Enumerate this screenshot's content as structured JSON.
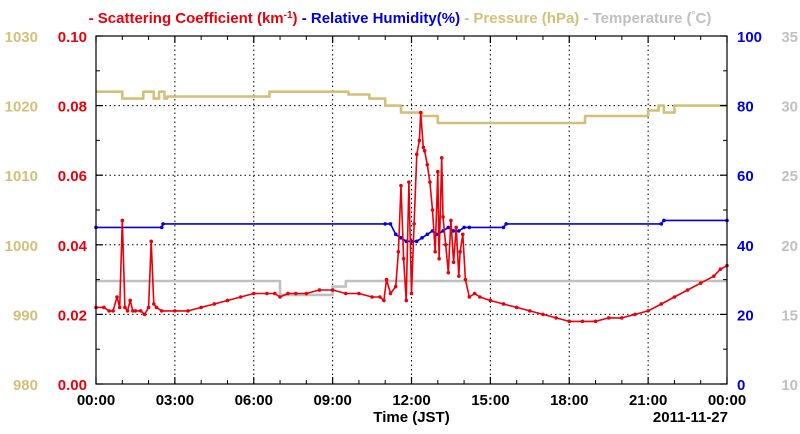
{
  "chart_data": {
    "type": "line",
    "xlabel": "Time (JST)",
    "date_label": "2011-11-27",
    "x_ticks": [
      "00:00",
      "03:00",
      "06:00",
      "09:00",
      "12:00",
      "15:00",
      "18:00",
      "21:00",
      "00:00"
    ],
    "xlim_hours": [
      0,
      24
    ],
    "grid": true,
    "legend": {
      "placement": "top",
      "entries": [
        {
          "marker": "-",
          "name": "Scattering Coefficient (km",
          "sup": "-1",
          "suffix": ")",
          "color": "#e8000b"
        },
        {
          "marker": "-",
          "name": "Relative Humidity(%)",
          "sup": "",
          "suffix": "",
          "color": "#0000e0"
        },
        {
          "marker": "-",
          "name": "Pressure (hPa)",
          "sup": "",
          "suffix": "",
          "color": "#d2c07a"
        },
        {
          "marker": "-",
          "name": "Temperature (",
          "sup": "°",
          "suffix": "C)",
          "color": "#c0c0c0"
        }
      ]
    },
    "axes": {
      "pressure": {
        "side": "left-outer",
        "ylim": [
          980,
          1030
        ],
        "ticks": [
          "980",
          "990",
          "1000",
          "1010",
          "1020",
          "1030"
        ],
        "color": "#d2c07a"
      },
      "scattering": {
        "side": "left-inner",
        "ylim": [
          0,
          0.1
        ],
        "ticks": [
          "0.00",
          "0.02",
          "0.04",
          "0.06",
          "0.08",
          "0.10"
        ],
        "color": "#e8000b"
      },
      "humidity": {
        "side": "right-inner",
        "ylim": [
          0,
          100
        ],
        "ticks": [
          "0",
          "20",
          "40",
          "60",
          "80",
          "100"
        ],
        "color": "#0000e0"
      },
      "temperature": {
        "side": "right-outer",
        "ylim": [
          10,
          35
        ],
        "ticks": [
          "10",
          "15",
          "20",
          "25",
          "30",
          "35"
        ],
        "color": "#c0c0c0"
      }
    },
    "series": [
      {
        "name": "Scattering Coefficient (km-1)",
        "axis": "scattering",
        "color": "#e8000b",
        "markers": true,
        "x": [
          0,
          0.3,
          0.5,
          0.65,
          0.8,
          0.9,
          1.0,
          1.1,
          1.2,
          1.3,
          1.4,
          1.5,
          1.7,
          1.85,
          2.0,
          2.1,
          2.2,
          2.3,
          2.5,
          3.0,
          3.5,
          4.0,
          4.5,
          5.0,
          5.5,
          6.0,
          6.5,
          6.8,
          7.0,
          7.3,
          7.6,
          8.0,
          8.5,
          9.0,
          9.5,
          10.0,
          10.5,
          10.8,
          10.95,
          11.05,
          11.2,
          11.4,
          11.5,
          11.6,
          11.7,
          11.8,
          11.9,
          12.0,
          12.1,
          12.2,
          12.3,
          12.35,
          12.45,
          12.5,
          12.6,
          12.7,
          12.8,
          12.9,
          13.0,
          13.05,
          13.15,
          13.2,
          13.3,
          13.4,
          13.5,
          13.6,
          13.7,
          13.8,
          13.85,
          13.95,
          14.05,
          14.2,
          14.4,
          14.6,
          15.0,
          15.5,
          16.0,
          16.5,
          17.0,
          17.5,
          18.0,
          18.5,
          19.0,
          19.5,
          20.0,
          20.5,
          21.0,
          21.5,
          22.0,
          22.5,
          23.0,
          23.5,
          23.75,
          24.0
        ],
        "y": [
          0.022,
          0.022,
          0.021,
          0.021,
          0.025,
          0.022,
          0.047,
          0.022,
          0.021,
          0.024,
          0.021,
          0.021,
          0.021,
          0.02,
          0.022,
          0.041,
          0.023,
          0.022,
          0.021,
          0.021,
          0.021,
          0.022,
          0.023,
          0.024,
          0.025,
          0.026,
          0.026,
          0.026,
          0.025,
          0.026,
          0.026,
          0.026,
          0.027,
          0.027,
          0.026,
          0.026,
          0.025,
          0.025,
          0.024,
          0.03,
          0.026,
          0.028,
          0.038,
          0.057,
          0.036,
          0.024,
          0.058,
          0.026,
          0.046,
          0.066,
          0.07,
          0.078,
          0.068,
          0.067,
          0.063,
          0.058,
          0.05,
          0.038,
          0.061,
          0.036,
          0.065,
          0.048,
          0.04,
          0.032,
          0.047,
          0.035,
          0.045,
          0.031,
          0.038,
          0.043,
          0.03,
          0.025,
          0.026,
          0.025,
          0.024,
          0.023,
          0.022,
          0.021,
          0.02,
          0.019,
          0.018,
          0.018,
          0.018,
          0.019,
          0.019,
          0.02,
          0.021,
          0.023,
          0.025,
          0.027,
          0.029,
          0.031,
          0.033,
          0.034
        ]
      },
      {
        "name": "Relative Humidity(%)",
        "axis": "humidity",
        "color": "#0000e0",
        "markers": true,
        "x": [
          0,
          2.5,
          2.55,
          11.0,
          11.2,
          11.4,
          11.6,
          11.8,
          12.0,
          12.2,
          12.4,
          12.6,
          12.8,
          13.0,
          13.2,
          13.4,
          13.6,
          13.8,
          14.0,
          14.2,
          15.5,
          15.6,
          21.5,
          21.6,
          24.0
        ],
        "y": [
          45,
          45,
          46,
          46,
          46,
          43,
          42,
          41,
          41,
          41,
          42,
          43,
          44,
          43,
          44,
          45,
          44,
          44,
          45,
          45,
          45,
          46,
          46,
          47,
          47
        ]
      },
      {
        "name": "Pressure (hPa)",
        "axis": "pressure",
        "color": "#d2c07a",
        "markers": false,
        "x": [
          0,
          1.0,
          1.0,
          1.8,
          1.8,
          2.2,
          2.2,
          2.4,
          2.4,
          2.6,
          2.6,
          2.7,
          2.7,
          6.6,
          6.6,
          9.6,
          9.6,
          10.4,
          10.4,
          11.0,
          11.0,
          11.6,
          11.6,
          12.4,
          12.4,
          13.0,
          13.0,
          15.0,
          15.0,
          18.6,
          18.6,
          21.0,
          21.0,
          21.4,
          21.4,
          21.6,
          21.6,
          22.0,
          22.0,
          24.0
        ],
        "y": [
          1022,
          1022,
          1021,
          1021,
          1022,
          1022,
          1021,
          1021,
          1022,
          1022,
          1021,
          1021,
          1021.3,
          1021.3,
          1022,
          1022,
          1021.6,
          1021.6,
          1021,
          1021,
          1020,
          1020,
          1019,
          1019,
          1018.5,
          1018.5,
          1017.5,
          1017.5,
          1017.5,
          1017.5,
          1018.5,
          1018.5,
          1019.3,
          1019.3,
          1020,
          1020,
          1019,
          1019,
          1020,
          1020
        ]
      },
      {
        "name": "Temperature (C)",
        "axis": "temperature",
        "color": "#c0c0c0",
        "markers": false,
        "x": [
          0,
          7.0,
          7.0,
          9.0,
          9.0,
          9.5,
          9.5,
          11.5,
          11.5,
          24.0
        ],
        "y": [
          17.4,
          17.4,
          16.4,
          16.4,
          17.0,
          17.0,
          17.4,
          17.4,
          17.4,
          17.4
        ]
      }
    ]
  }
}
